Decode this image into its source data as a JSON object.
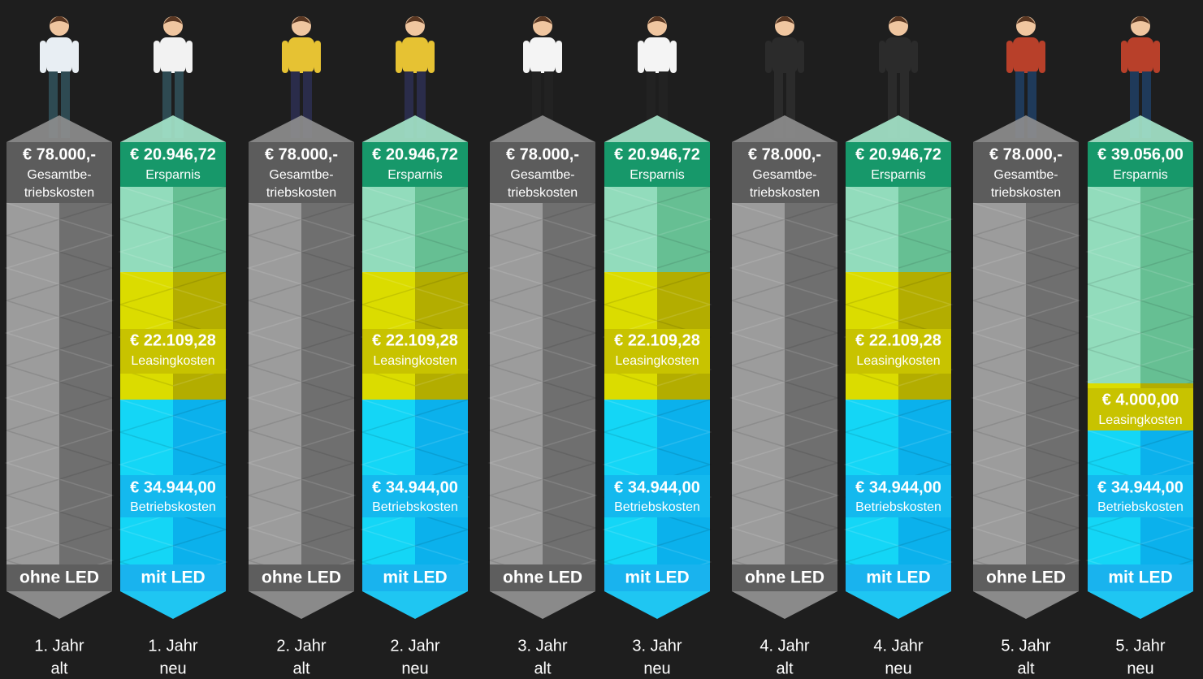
{
  "columns": [
    {
      "total": "€ 78.000,-",
      "total_caption": [
        "Gesamtbe-",
        "triebskosten"
      ],
      "footer": "ohne LED",
      "year": "1. Jahr",
      "age": "alt"
    },
    {
      "savings": "€ 20.946,72",
      "savings_caption": "Ersparnis",
      "leasing": "€ 22.109,28",
      "leasing_caption": "Leasingkosten",
      "operating": "€ 34.944,00",
      "operating_caption": "Betriebskosten",
      "footer": "mit LED",
      "year": "1. Jahr",
      "age": "neu"
    },
    {
      "total": "€ 78.000,-",
      "total_caption": [
        "Gesamtbe-",
        "triebskosten"
      ],
      "footer": "ohne LED",
      "year": "2. Jahr",
      "age": "alt"
    },
    {
      "savings": "€ 20.946,72",
      "savings_caption": "Ersparnis",
      "leasing": "€ 22.109,28",
      "leasing_caption": "Leasingkosten",
      "operating": "€ 34.944,00",
      "operating_caption": "Betriebskosten",
      "footer": "mit LED",
      "year": "2. Jahr",
      "age": "neu"
    },
    {
      "total": "€ 78.000,-",
      "total_caption": [
        "Gesamtbe-",
        "triebskosten"
      ],
      "footer": "ohne LED",
      "year": "3. Jahr",
      "age": "alt"
    },
    {
      "savings": "€ 20.946,72",
      "savings_caption": "Ersparnis",
      "leasing": "€ 22.109,28",
      "leasing_caption": "Leasingkosten",
      "operating": "€ 34.944,00",
      "operating_caption": "Betriebskosten",
      "footer": "mit LED",
      "year": "3. Jahr",
      "age": "neu"
    },
    {
      "total": "€ 78.000,-",
      "total_caption": [
        "Gesamtbe-",
        "triebskosten"
      ],
      "footer": "ohne LED",
      "year": "4. Jahr",
      "age": "alt"
    },
    {
      "savings": "€ 20.946,72",
      "savings_caption": "Ersparnis",
      "leasing": "€ 22.109,28",
      "leasing_caption": "Leasingkosten",
      "operating": "€ 34.944,00",
      "operating_caption": "Betriebskosten",
      "footer": "mit LED",
      "year": "4. Jahr",
      "age": "neu"
    },
    {
      "total": "€ 78.000,-",
      "total_caption": [
        "Gesamtbe-",
        "triebskosten"
      ],
      "footer": "ohne LED",
      "year": "5. Jahr",
      "age": "alt"
    },
    {
      "savings": "€ 39.056,00",
      "savings_caption": "Ersparnis",
      "leasing": "€ 4.000,00",
      "leasing_caption": "Leasingkosten",
      "operating": "€ 34.944,00",
      "operating_caption": "Betriebskosten",
      "footer": "mit LED",
      "year": "5. Jahr",
      "age": "neu"
    }
  ]
}
